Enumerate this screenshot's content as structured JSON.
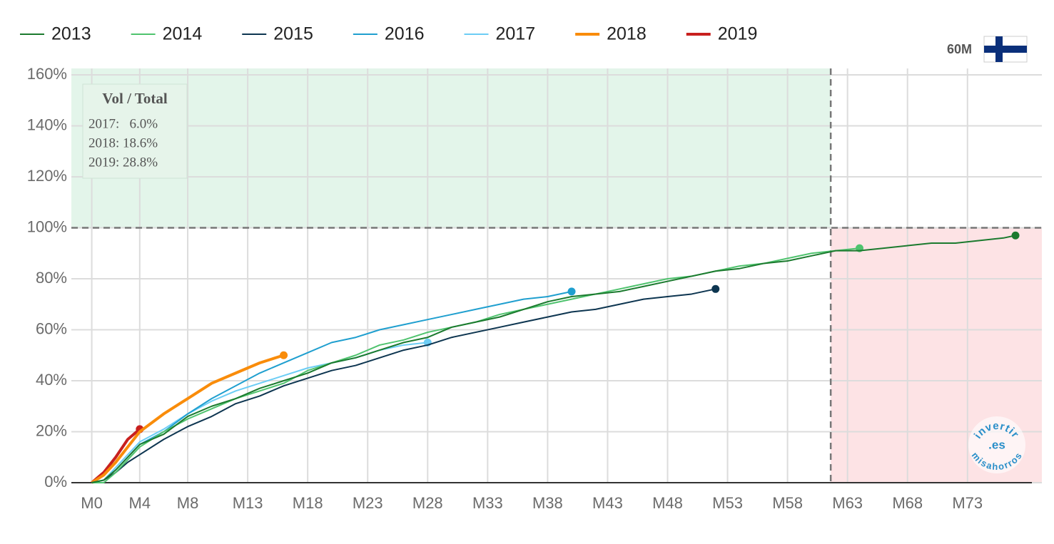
{
  "chart_data": {
    "type": "line",
    "x": [
      0,
      1,
      2,
      3,
      4,
      6,
      8,
      10,
      12,
      14,
      16,
      18,
      20,
      22,
      24,
      26,
      28,
      30,
      32,
      34,
      36,
      38,
      40,
      42,
      44,
      46,
      48,
      50,
      52,
      54,
      56,
      58,
      60,
      62,
      64,
      66,
      68,
      70,
      72,
      74,
      76,
      77
    ],
    "series": [
      {
        "name": "2013",
        "color": "#1b7a2e",
        "line_width": 2,
        "values": [
          0,
          1,
          5,
          10,
          15,
          19,
          26,
          30,
          33,
          37,
          40,
          43,
          47,
          49,
          52,
          55,
          57,
          61,
          63,
          65,
          68,
          71,
          73,
          74,
          75,
          77,
          79,
          81,
          83,
          84,
          86,
          87,
          89,
          91,
          91,
          92,
          93,
          94,
          94,
          95,
          96,
          97
        ]
      },
      {
        "name": "2014",
        "color": "#4fc36e",
        "line_width": 2,
        "values": [
          0,
          0,
          4,
          9,
          14,
          20,
          25,
          29,
          33,
          36,
          39,
          44,
          47,
          50,
          54,
          56,
          59,
          61,
          63,
          66,
          68,
          70,
          72,
          74,
          76,
          78,
          80,
          81,
          83,
          85,
          86,
          88,
          90,
          91,
          92,
          null,
          null,
          null,
          null,
          null,
          null,
          null
        ]
      },
      {
        "name": "2015",
        "color": "#0d3550",
        "line_width": 2,
        "values": [
          0,
          1,
          4,
          8,
          11,
          17,
          22,
          26,
          31,
          34,
          38,
          41,
          44,
          46,
          49,
          52,
          54,
          57,
          59,
          61,
          63,
          65,
          67,
          68,
          70,
          72,
          73,
          74,
          76,
          null,
          null,
          null,
          null,
          null,
          null,
          null,
          null,
          null,
          null,
          null,
          null,
          null
        ]
      },
      {
        "name": "2016",
        "color": "#1f9fcf",
        "line_width": 2,
        "values": [
          0,
          1,
          5,
          10,
          15,
          20,
          27,
          33,
          38,
          43,
          47,
          51,
          55,
          57,
          60,
          62,
          64,
          66,
          68,
          70,
          72,
          73,
          75,
          null,
          null,
          null,
          null,
          null,
          null,
          null,
          null,
          null,
          null,
          null,
          null,
          null,
          null,
          null,
          null,
          null,
          null,
          null
        ]
      },
      {
        "name": "2017",
        "color": "#6ccdf5",
        "line_width": 2,
        "values": [
          0,
          1,
          6,
          11,
          16,
          21,
          27,
          32,
          36,
          39,
          42,
          45,
          47,
          49,
          52,
          54,
          55,
          null,
          null,
          null,
          null,
          null,
          null,
          null,
          null,
          null,
          null,
          null,
          null,
          null,
          null,
          null,
          null,
          null,
          null,
          null,
          null,
          null,
          null,
          null,
          null,
          null
        ]
      },
      {
        "name": "2018",
        "color": "#f98c0a",
        "line_width": 4,
        "values": [
          0,
          3,
          8,
          14,
          20,
          27,
          33,
          39,
          43,
          47,
          50,
          null,
          null,
          null,
          null,
          null,
          null,
          null,
          null,
          null,
          null,
          null,
          null,
          null,
          null,
          null,
          null,
          null,
          null,
          null,
          null,
          null,
          null,
          null,
          null,
          null,
          null,
          null,
          null,
          null,
          null,
          null
        ]
      },
      {
        "name": "2019",
        "color": "#c8201e",
        "line_width": 4,
        "values": [
          0,
          4,
          10,
          17,
          21,
          null,
          null,
          null,
          null,
          null,
          null,
          null,
          null,
          null,
          null,
          null,
          null,
          null,
          null,
          null,
          null,
          null,
          null,
          null,
          null,
          null,
          null,
          null,
          null,
          null,
          null,
          null,
          null,
          null,
          null,
          null,
          null,
          null,
          null,
          null,
          null,
          null
        ]
      }
    ],
    "xlim": [
      -1.7,
      79.2
    ],
    "ylim": [
      0,
      160
    ],
    "xticks": [
      {
        "value": 0,
        "label": "M0"
      },
      {
        "value": 4,
        "label": "M4"
      },
      {
        "value": 8,
        "label": "M8"
      },
      {
        "value": 13,
        "label": "M13"
      },
      {
        "value": 18,
        "label": "M18"
      },
      {
        "value": 23,
        "label": "M23"
      },
      {
        "value": 28,
        "label": "M28"
      },
      {
        "value": 33,
        "label": "M33"
      },
      {
        "value": 38,
        "label": "M38"
      },
      {
        "value": 43,
        "label": "M43"
      },
      {
        "value": 48,
        "label": "M48"
      },
      {
        "value": 53,
        "label": "M53"
      },
      {
        "value": 58,
        "label": "M58"
      },
      {
        "value": 63,
        "label": "M63"
      },
      {
        "value": 68,
        "label": "M68"
      },
      {
        "value": 73,
        "label": "M73"
      }
    ],
    "yticks": [
      {
        "value": 0,
        "label": "0%"
      },
      {
        "value": 20,
        "label": "20%"
      },
      {
        "value": 40,
        "label": "40%"
      },
      {
        "value": 60,
        "label": "60%"
      },
      {
        "value": 80,
        "label": "80%"
      },
      {
        "value": 100,
        "label": "100%"
      },
      {
        "value": 120,
        "label": "120%"
      },
      {
        "value": 140,
        "label": "140%"
      },
      {
        "value": 160,
        "label": "160%"
      }
    ],
    "grid": true,
    "hline": 100,
    "vline": 61.6,
    "annotation": {
      "title": "Vol / Total",
      "lines": [
        "2017:   6.0%",
        "2018: 18.6%",
        "2019: 28.8%"
      ]
    },
    "badge": "60M",
    "watermark": [
      "invertir",
      ".es",
      "misahorros"
    ]
  }
}
